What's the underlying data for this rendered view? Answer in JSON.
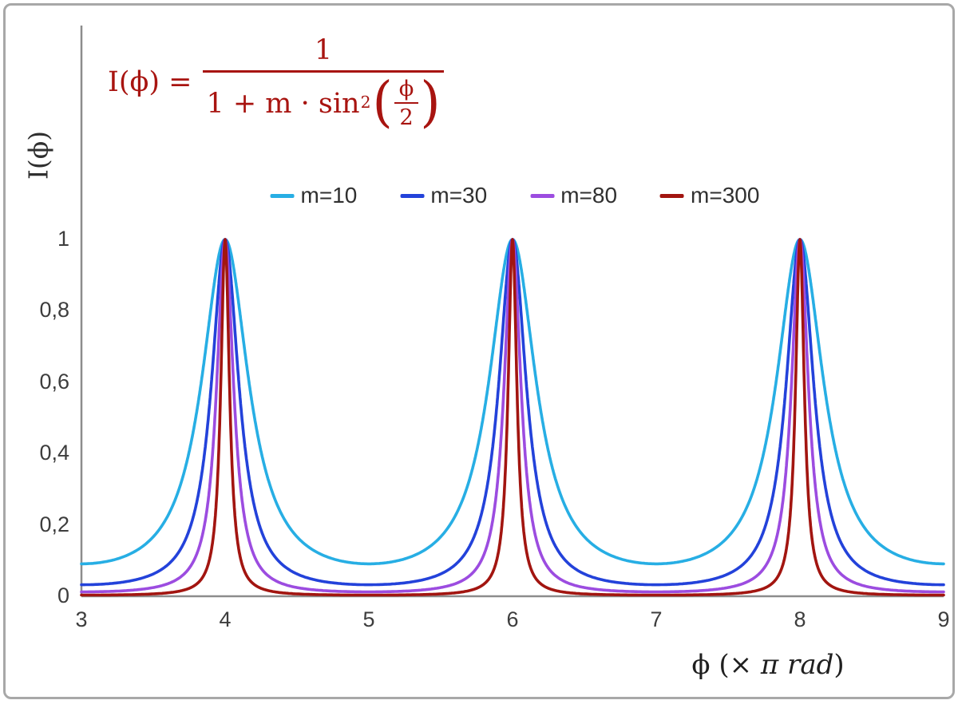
{
  "figure": {
    "background": "#ffffff",
    "border_color": "#a8a8a8"
  },
  "formula": {
    "lhs": "I(ϕ) =",
    "numerator": "1",
    "den_prefix": "1 + m · sin",
    "den_sup": "2",
    "lparen": "(",
    "rparen": ")",
    "inner_num": "ϕ",
    "inner_den": "2",
    "color": "#a81410"
  },
  "chart_data": {
    "type": "line",
    "title": "",
    "xlabel": "ϕ  (× π rad)",
    "xlabel_parts": {
      "prefix": "ϕ  (× ",
      "italic": "π rad",
      "suffix": ")"
    },
    "ylabel": "I(ϕ)",
    "xlim": [
      3,
      9
    ],
    "ylim": [
      0,
      1
    ],
    "x_ticks": [
      3,
      4,
      5,
      6,
      7,
      8,
      9
    ],
    "x_tick_labels": [
      "3",
      "4",
      "5",
      "6",
      "7",
      "8",
      "9"
    ],
    "y_ticks": [
      0,
      0.2,
      0.4,
      0.6,
      0.8,
      1
    ],
    "y_tick_labels": [
      "0",
      "0,2",
      "0,4",
      "0,6",
      "0,8",
      "1"
    ],
    "grid": false,
    "legend_position": "top-center",
    "axis_color": "#8c8c8c",
    "function": "I(x) = 1 / (1 + m * sin^2(x*pi/2)), x expressed in units of pi rad",
    "peaks_x": [
      4,
      6,
      8
    ],
    "peak_value": 1,
    "series": [
      {
        "name": "m=10",
        "m": 10,
        "color": "#27aee4",
        "min_value": 0.0909
      },
      {
        "name": "m=30",
        "m": 30,
        "color": "#2342da",
        "min_value": 0.0323
      },
      {
        "name": "m=80",
        "m": 80,
        "color": "#9c4ce0",
        "min_value": 0.0123
      },
      {
        "name": "m=300",
        "m": 300,
        "color": "#a21510",
        "min_value": 0.0033
      }
    ]
  }
}
